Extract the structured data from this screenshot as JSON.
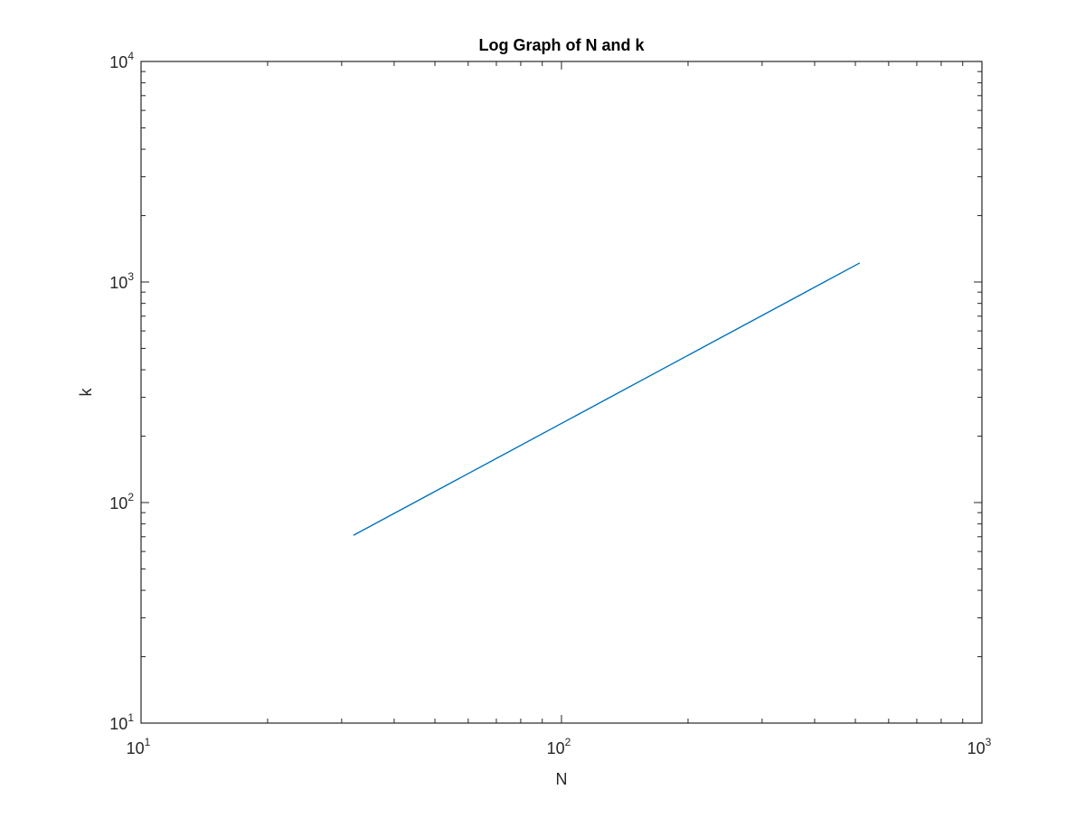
{
  "chart_data": {
    "type": "line",
    "title": "Log Graph of N and k",
    "xlabel": "N",
    "ylabel": "k",
    "xscale": "log",
    "yscale": "log",
    "xlim": [
      10,
      1000
    ],
    "ylim": [
      10,
      10000
    ],
    "grid": false,
    "box": true,
    "xticks": [
      {
        "value": 10,
        "base": "10",
        "exp": "1"
      },
      {
        "value": 100,
        "base": "10",
        "exp": "2"
      },
      {
        "value": 1000,
        "base": "10",
        "exp": "3"
      }
    ],
    "yticks": [
      {
        "value": 10,
        "base": "10",
        "exp": "1"
      },
      {
        "value": 100,
        "base": "10",
        "exp": "2"
      },
      {
        "value": 1000,
        "base": "10",
        "exp": "3"
      },
      {
        "value": 10000,
        "base": "10",
        "exp": "4"
      }
    ],
    "series": [
      {
        "color": "#0072bd",
        "x": [
          32,
          512
        ],
        "y": [
          71,
          1220
        ]
      }
    ]
  },
  "colors": {
    "axis": "#262626",
    "line": "#0072bd"
  }
}
